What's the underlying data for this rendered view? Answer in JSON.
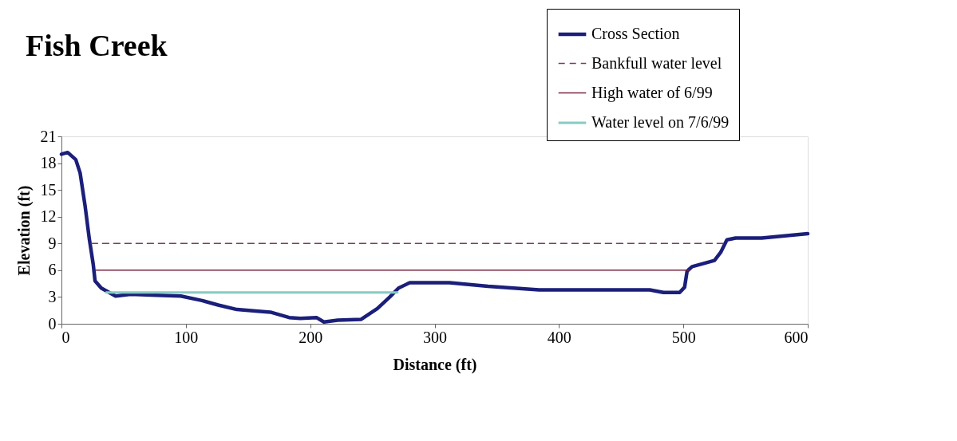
{
  "chart_data": {
    "type": "line",
    "title": "Fish Creek",
    "xlabel": "Distance (ft)",
    "ylabel": "Elevation (ft)",
    "xlim": [
      0,
      600
    ],
    "xticks": [
      0,
      100,
      200,
      300,
      400,
      500,
      600
    ],
    "ylim": [
      0,
      21
    ],
    "yticks": [
      0,
      3,
      6,
      9,
      12,
      15,
      18,
      21
    ],
    "grid": false,
    "legend": "top right",
    "marker": "none",
    "series": [
      {
        "name": "Cross Section",
        "color": "#1b1f7a",
        "line_style": "solid",
        "x": [
          0,
          5,
          11.5,
          15,
          19,
          22.4,
          25.6,
          27,
          32,
          43.5,
          55.6,
          77,
          96,
          113,
          126,
          141,
          158,
          168,
          183,
          192,
          205,
          211,
          222,
          241,
          254,
          264,
          271,
          280,
          312,
          343,
          384,
          473,
          484,
          497,
          501,
          503,
          507,
          525,
          530,
          535,
          542,
          563,
          600
        ],
        "values": [
          19.0,
          19.2,
          18.4,
          16.9,
          13.2,
          9.5,
          6.6,
          4.8,
          4.0,
          3.1,
          3.3,
          3.2,
          3.1,
          2.6,
          2.1,
          1.6,
          1.4,
          1.3,
          0.7,
          0.6,
          0.7,
          0.2,
          0.4,
          0.5,
          1.7,
          3.0,
          4.0,
          4.6,
          4.6,
          4.2,
          3.8,
          3.8,
          3.5,
          3.5,
          4.1,
          5.9,
          6.4,
          7.1,
          8.0,
          9.4,
          9.6,
          9.6,
          10.1
        ]
      },
      {
        "name": "Bankfull water level",
        "color": "#7d3a63",
        "line_style": "dashed",
        "x": [
          24,
          532
        ],
        "values": [
          9,
          9
        ]
      },
      {
        "name": "High water of 6/99",
        "color": "#7a2443",
        "line_style": "solid",
        "x": [
          27.5,
          505
        ],
        "values": [
          6,
          6
        ]
      },
      {
        "name": "Water level on 7/6/99",
        "color": "#86cbc3",
        "line_style": "solid",
        "x": [
          36,
          270
        ],
        "values": [
          3.5,
          3.5
        ]
      }
    ]
  }
}
